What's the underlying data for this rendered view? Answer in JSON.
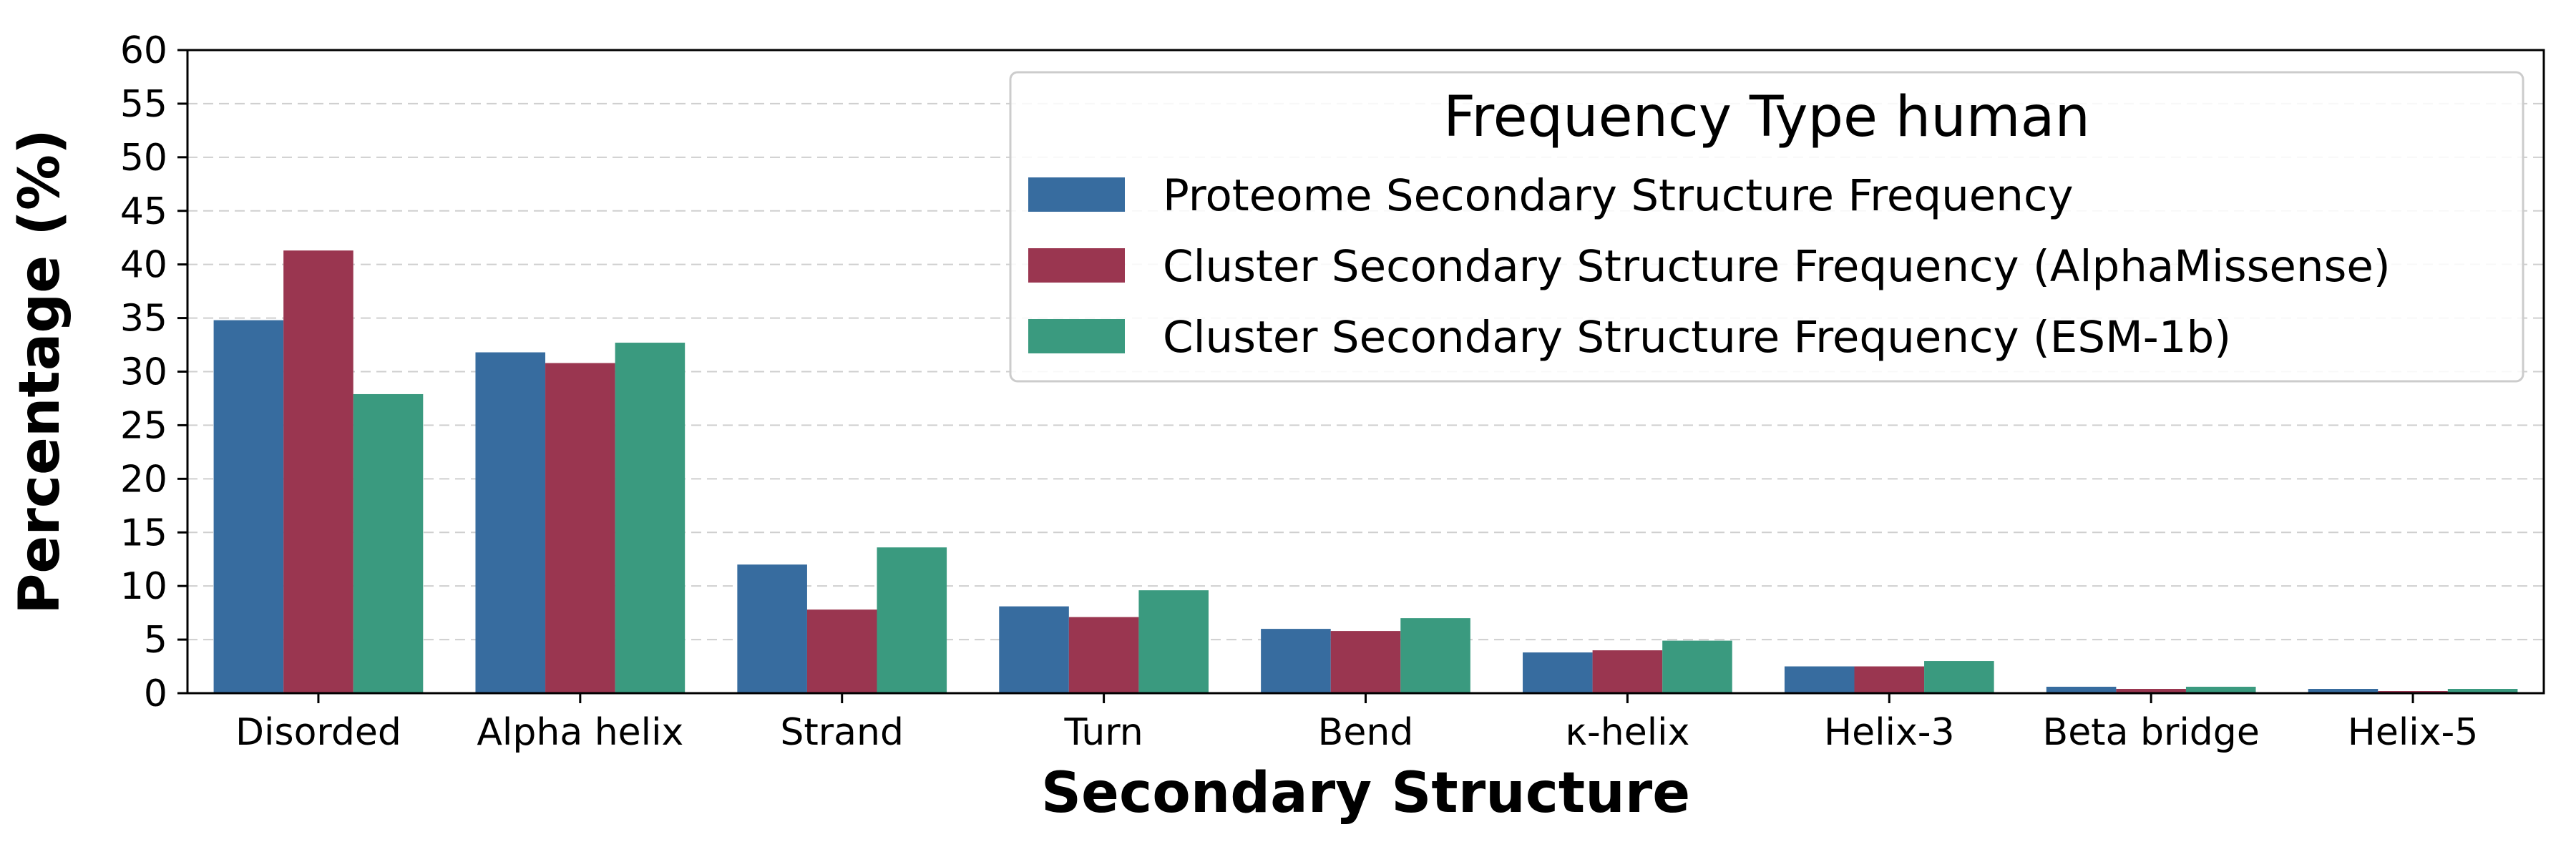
{
  "chart_data": {
    "type": "bar",
    "title": "",
    "xlabel": "Secondary Structure",
    "ylabel": "Percentage (%)",
    "ylim": [
      0,
      60
    ],
    "yticks": [
      0,
      5,
      10,
      15,
      20,
      25,
      30,
      35,
      40,
      45,
      50,
      55,
      60
    ],
    "grid": "y-dashed",
    "legend_title": "Frequency Type human",
    "legend_position": "top-right",
    "categories": [
      "Disorded",
      "Alpha helix",
      "Strand",
      "Turn",
      "Bend",
      "κ-helix",
      "Helix-3",
      "Beta bridge",
      "Helix-5"
    ],
    "series": [
      {
        "name": "Proteome Secondary Structure Frequency",
        "color": "#376c9f",
        "values": [
          34.8,
          31.8,
          12.0,
          8.1,
          6.0,
          3.8,
          2.5,
          0.6,
          0.4
        ]
      },
      {
        "name": "Cluster Secondary Structure Frequency (AlphaMissense)",
        "color": "#9a3650",
        "values": [
          41.3,
          30.8,
          7.8,
          7.1,
          5.8,
          4.0,
          2.5,
          0.4,
          0.2
        ]
      },
      {
        "name": "Cluster Secondary Structure Frequency (ESM-1b)",
        "color": "#3a9a7f",
        "values": [
          27.9,
          32.7,
          13.6,
          9.6,
          7.0,
          4.9,
          3.0,
          0.6,
          0.4
        ]
      }
    ]
  }
}
